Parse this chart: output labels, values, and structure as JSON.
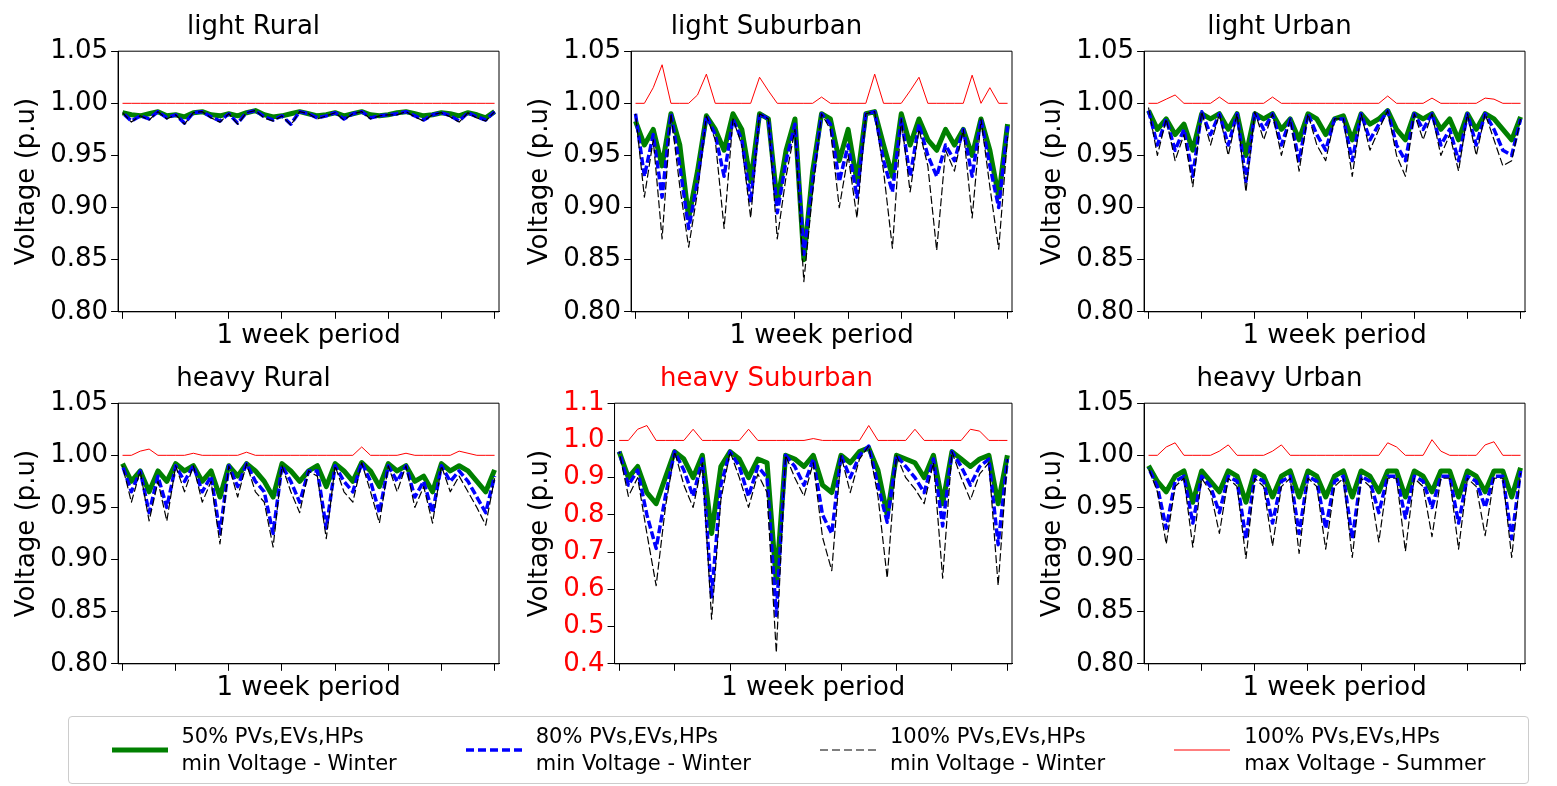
{
  "chart_data": [
    {
      "type": "line",
      "title": "light Rural",
      "xlabel": "1 week period",
      "ylabel": "Voltage (p.u)",
      "categories": [
        null,
        null,
        null,
        null,
        null,
        null,
        null,
        null,
        null,
        null,
        null,
        null,
        null,
        null,
        null,
        null,
        null,
        null,
        null,
        null,
        null,
        null,
        null,
        null,
        null,
        null,
        null,
        null,
        null,
        null,
        null,
        null,
        null,
        null,
        null,
        null,
        null,
        null,
        null,
        null,
        null,
        null,
        null
      ],
      "ylim": [
        0.8,
        1.05
      ],
      "yticks": [
        {
          "value": 0.8,
          "label": "0.80"
        },
        0.85,
        {
          "value": 0.9,
          "label": "0.90"
        },
        0.95,
        {
          "value": 1.0,
          "label": "1.00"
        },
        1.05
      ],
      "tick_labels": "y",
      "legend": "bottom",
      "marker": "none",
      "series": [
        {
          "name": "50% PVs,EVs,HPs\nmin Voltage - Winter",
          "color": "#008000",
          "line_style": "solid",
          "values": [
            0.991,
            0.989,
            0.988,
            0.99,
            0.992,
            0.988,
            0.989,
            0.987,
            0.991,
            0.992,
            0.989,
            0.988,
            0.99,
            0.988,
            0.991,
            0.993,
            0.989,
            0.987,
            0.988,
            0.99,
            0.992,
            0.99,
            0.988,
            0.989,
            0.991,
            0.988,
            0.99,
            0.992,
            0.989,
            0.988,
            0.989,
            0.991,
            0.992,
            0.99,
            0.988,
            0.989,
            0.991,
            0.99,
            0.988,
            0.991,
            0.989,
            0.986,
            0.992
          ]
        },
        {
          "name": "80% PVs,EVs,HPs\nmin Voltage - Winter",
          "color": "#0000ff",
          "line_style": "dashed",
          "values": [
            0.991,
            0.983,
            0.988,
            0.985,
            0.992,
            0.986,
            0.989,
            0.981,
            0.991,
            0.992,
            0.987,
            0.983,
            0.99,
            0.981,
            0.991,
            0.993,
            0.987,
            0.984,
            0.988,
            0.98,
            0.992,
            0.99,
            0.986,
            0.988,
            0.991,
            0.985,
            0.99,
            0.992,
            0.986,
            0.988,
            0.989,
            0.99,
            0.992,
            0.988,
            0.984,
            0.989,
            0.991,
            0.988,
            0.983,
            0.991,
            0.987,
            0.984,
            0.992
          ]
        },
        {
          "name": "100% PVs,EVs,HPs\nmin Voltage - Winter",
          "color": "#000000",
          "line_style": "dashed",
          "values": [
            0.991,
            0.982,
            0.988,
            0.984,
            0.992,
            0.985,
            0.989,
            0.98,
            0.991,
            0.992,
            0.986,
            0.982,
            0.99,
            0.98,
            0.991,
            0.993,
            0.986,
            0.983,
            0.988,
            0.979,
            0.992,
            0.99,
            0.985,
            0.988,
            0.991,
            0.984,
            0.99,
            0.992,
            0.985,
            0.988,
            0.989,
            0.989,
            0.992,
            0.987,
            0.983,
            0.989,
            0.991,
            0.987,
            0.982,
            0.991,
            0.986,
            0.983,
            0.992
          ]
        },
        {
          "name": "100% PVs,EVs,HPs\nmax Voltage - Summer",
          "color": "#ff0000",
          "line_style": "solid",
          "values": [
            1.0,
            1.0,
            1.0,
            1.0,
            1.0,
            1.0,
            1.0,
            1.0,
            1.0,
            1.0,
            1.0,
            1.0,
            1.0,
            1.0,
            1.0,
            1.0,
            1.0,
            1.0,
            1.0,
            1.0,
            1.0,
            1.0,
            1.0,
            1.0,
            1.0,
            1.0,
            1.0,
            1.0,
            1.0,
            1.0,
            1.0,
            1.0,
            1.0,
            1.0,
            1.0,
            1.0,
            1.0,
            1.0,
            1.0,
            1.0,
            1.0,
            1.0,
            1.0
          ]
        }
      ]
    },
    {
      "type": "line",
      "title": "light Suburban",
      "xlabel": "1 week period",
      "ylabel": "Voltage (p.u)",
      "categories": [
        null,
        null,
        null,
        null,
        null,
        null,
        null,
        null,
        null,
        null,
        null,
        null,
        null,
        null,
        null,
        null,
        null,
        null,
        null,
        null,
        null,
        null,
        null,
        null,
        null,
        null,
        null,
        null,
        null,
        null,
        null,
        null,
        null,
        null,
        null,
        null,
        null,
        null,
        null,
        null,
        null,
        null,
        null
      ],
      "ylim": [
        0.8,
        1.05
      ],
      "yticks": [
        {
          "value": 0.8,
          "label": "0.80"
        },
        0.85,
        {
          "value": 0.9,
          "label": "0.90"
        },
        0.95,
        {
          "value": 1.0,
          "label": "1.00"
        },
        1.05
      ],
      "tick_labels": "y",
      "marker": "none",
      "series": [
        {
          "color": "#008000",
          "line_style": "solid",
          "values": [
            0.983,
            0.96,
            0.975,
            0.94,
            0.99,
            0.96,
            0.89,
            0.935,
            0.988,
            0.975,
            0.955,
            0.99,
            0.975,
            0.925,
            0.99,
            0.985,
            0.905,
            0.955,
            0.985,
            0.85,
            0.935,
            0.99,
            0.985,
            0.945,
            0.975,
            0.925,
            0.99,
            0.992,
            0.96,
            0.93,
            0.99,
            0.96,
            0.985,
            0.965,
            0.955,
            0.975,
            0.96,
            0.975,
            0.95,
            0.985,
            0.955,
            0.91,
            0.98
          ]
        },
        {
          "color": "#0000ff",
          "line_style": "dashed",
          "values": [
            0.99,
            0.93,
            0.97,
            0.91,
            0.99,
            0.94,
            0.88,
            0.925,
            0.988,
            0.97,
            0.93,
            0.985,
            0.965,
            0.905,
            0.99,
            0.985,
            0.895,
            0.945,
            0.98,
            0.855,
            0.925,
            0.99,
            0.98,
            0.925,
            0.96,
            0.91,
            0.99,
            0.992,
            0.945,
            0.915,
            0.985,
            0.93,
            0.98,
            0.95,
            0.93,
            0.96,
            0.945,
            0.975,
            0.93,
            0.985,
            0.94,
            0.9,
            0.978
          ]
        },
        {
          "color": "#000000",
          "line_style": "dashed",
          "values": [
            0.99,
            0.91,
            0.965,
            0.87,
            0.99,
            0.92,
            0.862,
            0.915,
            0.988,
            0.965,
            0.88,
            0.985,
            0.96,
            0.89,
            0.99,
            0.985,
            0.87,
            0.93,
            0.975,
            0.829,
            0.915,
            0.99,
            0.975,
            0.9,
            0.95,
            0.89,
            0.99,
            0.992,
            0.935,
            0.861,
            0.985,
            0.915,
            0.975,
            0.94,
            0.859,
            0.955,
            0.935,
            0.975,
            0.89,
            0.985,
            0.92,
            0.86,
            0.968
          ]
        },
        {
          "color": "#ff0000",
          "line_style": "solid",
          "values": [
            1.0,
            1.0,
            1.015,
            1.037,
            1.0,
            1.0,
            1.0,
            1.008,
            1.028,
            1.0,
            1.0,
            1.0,
            1.0,
            1.0,
            1.025,
            1.012,
            1.0,
            1.0,
            1.0,
            1.0,
            1.0,
            1.006,
            1.0,
            1.0,
            1.0,
            1.0,
            1.0,
            1.028,
            1.0,
            1.0,
            1.0,
            1.012,
            1.025,
            1.0,
            1.0,
            1.0,
            1.0,
            1.0,
            1.027,
            1.0,
            1.015,
            1.0,
            1.0
          ]
        }
      ]
    },
    {
      "type": "line",
      "title": "light Urban",
      "xlabel": "1 week period",
      "ylabel": "Voltage (p.u)",
      "categories": [
        null,
        null,
        null,
        null,
        null,
        null,
        null,
        null,
        null,
        null,
        null,
        null,
        null,
        null,
        null,
        null,
        null,
        null,
        null,
        null,
        null,
        null,
        null,
        null,
        null,
        null,
        null,
        null,
        null,
        null,
        null,
        null,
        null,
        null,
        null,
        null,
        null,
        null,
        null,
        null,
        null,
        null,
        null
      ],
      "ylim": [
        0.8,
        1.05
      ],
      "yticks": [
        {
          "value": 0.8,
          "label": "0.80"
        },
        0.85,
        {
          "value": 0.9,
          "label": "0.90"
        },
        0.95,
        {
          "value": 1.0,
          "label": "1.00"
        },
        1.05
      ],
      "tick_labels": "y",
      "marker": "none",
      "series": [
        {
          "color": "#008000",
          "line_style": "solid",
          "values": [
            0.993,
            0.975,
            0.985,
            0.97,
            0.98,
            0.955,
            0.99,
            0.985,
            0.99,
            0.975,
            0.99,
            0.95,
            0.99,
            0.985,
            0.99,
            0.975,
            0.985,
            0.965,
            0.99,
            0.985,
            0.97,
            0.985,
            0.988,
            0.965,
            0.99,
            0.98,
            0.985,
            0.993,
            0.975,
            0.965,
            0.99,
            0.985,
            0.99,
            0.975,
            0.985,
            0.965,
            0.99,
            0.975,
            0.99,
            0.985,
            0.975,
            0.965,
            0.987
          ]
        },
        {
          "color": "#0000ff",
          "line_style": "dashed",
          "values": [
            0.993,
            0.96,
            0.985,
            0.955,
            0.975,
            0.93,
            0.992,
            0.97,
            0.99,
            0.96,
            0.99,
            0.925,
            0.992,
            0.975,
            0.99,
            0.96,
            0.985,
            0.945,
            0.99,
            0.97,
            0.955,
            0.985,
            0.985,
            0.945,
            0.99,
            0.965,
            0.98,
            0.993,
            0.96,
            0.945,
            0.99,
            0.975,
            0.99,
            0.96,
            0.975,
            0.945,
            0.99,
            0.96,
            0.99,
            0.975,
            0.955,
            0.95,
            0.985
          ]
        },
        {
          "color": "#000000",
          "line_style": "dashed",
          "values": [
            0.996,
            0.95,
            0.985,
            0.945,
            0.97,
            0.92,
            0.992,
            0.96,
            0.99,
            0.95,
            0.99,
            0.915,
            0.992,
            0.965,
            0.99,
            0.95,
            0.985,
            0.935,
            0.99,
            0.96,
            0.945,
            0.985,
            0.985,
            0.93,
            0.99,
            0.955,
            0.975,
            0.993,
            0.95,
            0.93,
            0.99,
            0.965,
            0.99,
            0.95,
            0.97,
            0.935,
            0.99,
            0.95,
            0.99,
            0.965,
            0.94,
            0.945,
            0.985
          ]
        },
        {
          "color": "#ff0000",
          "line_style": "solid",
          "values": [
            1.0,
            1.0,
            1.004,
            1.008,
            1.0,
            1.0,
            1.0,
            1.0,
            1.006,
            1.0,
            1.0,
            1.0,
            1.0,
            1.0,
            1.006,
            1.0,
            1.0,
            1.0,
            1.0,
            1.0,
            1.0,
            1.0,
            1.0,
            1.0,
            1.0,
            1.0,
            1.0,
            1.007,
            1.0,
            1.0,
            1.0,
            1.0,
            1.005,
            1.0,
            1.0,
            1.0,
            1.0,
            1.0,
            1.005,
            1.004,
            1.0,
            1.0,
            1.0
          ]
        }
      ]
    },
    {
      "type": "line",
      "title": "heavy Rural",
      "xlabel": "1 week period",
      "ylabel": "Voltage (p.u)",
      "categories": [
        null,
        null,
        null,
        null,
        null,
        null,
        null,
        null,
        null,
        null,
        null,
        null,
        null,
        null,
        null,
        null,
        null,
        null,
        null,
        null,
        null,
        null,
        null,
        null,
        null,
        null,
        null,
        null,
        null,
        null,
        null,
        null,
        null,
        null,
        null,
        null,
        null,
        null,
        null,
        null,
        null,
        null,
        null
      ],
      "ylim": [
        0.8,
        1.05
      ],
      "yticks": [
        {
          "value": 0.8,
          "label": "0.80"
        },
        0.85,
        {
          "value": 0.9,
          "label": "0.90"
        },
        0.95,
        {
          "value": 1.0,
          "label": "1.00"
        },
        1.05
      ],
      "tick_labels": "y",
      "marker": "none",
      "series": [
        {
          "color": "#008000",
          "line_style": "solid",
          "values": [
            0.992,
            0.975,
            0.985,
            0.965,
            0.985,
            0.975,
            0.992,
            0.985,
            0.99,
            0.975,
            0.985,
            0.96,
            0.99,
            0.98,
            0.992,
            0.985,
            0.975,
            0.96,
            0.992,
            0.985,
            0.975,
            0.985,
            0.99,
            0.97,
            0.992,
            0.985,
            0.975,
            0.993,
            0.985,
            0.97,
            0.992,
            0.985,
            0.99,
            0.975,
            0.98,
            0.965,
            0.992,
            0.985,
            0.99,
            0.985,
            0.975,
            0.965,
            0.986
          ]
        },
        {
          "color": "#0000ff",
          "line_style": "dashed",
          "values": [
            0.99,
            0.965,
            0.985,
            0.945,
            0.98,
            0.95,
            0.99,
            0.975,
            0.99,
            0.965,
            0.98,
            0.925,
            0.99,
            0.97,
            0.992,
            0.975,
            0.965,
            0.925,
            0.99,
            0.975,
            0.955,
            0.985,
            0.985,
            0.93,
            0.99,
            0.975,
            0.965,
            0.993,
            0.975,
            0.945,
            0.99,
            0.975,
            0.99,
            0.96,
            0.975,
            0.945,
            0.99,
            0.975,
            0.985,
            0.975,
            0.96,
            0.945,
            0.98
          ]
        },
        {
          "color": "#000000",
          "line_style": "dashed",
          "values": [
            0.99,
            0.955,
            0.985,
            0.937,
            0.975,
            0.937,
            0.99,
            0.965,
            0.99,
            0.955,
            0.975,
            0.915,
            0.99,
            0.96,
            0.992,
            0.965,
            0.955,
            0.912,
            0.99,
            0.965,
            0.945,
            0.985,
            0.98,
            0.92,
            0.99,
            0.965,
            0.955,
            0.993,
            0.965,
            0.935,
            0.99,
            0.965,
            0.99,
            0.95,
            0.97,
            0.935,
            0.99,
            0.965,
            0.98,
            0.965,
            0.95,
            0.933,
            0.978
          ]
        },
        {
          "color": "#ff0000",
          "line_style": "solid",
          "values": [
            1.0,
            1.0,
            1.004,
            1.006,
            1.0,
            1.0,
            1.0,
            1.0,
            1.002,
            1.0,
            1.0,
            1.0,
            1.0,
            1.0,
            1.003,
            1.0,
            1.0,
            1.0,
            1.0,
            1.0,
            1.0,
            1.0,
            1.0,
            1.0,
            1.0,
            1.0,
            1.0,
            1.008,
            1.0,
            1.0,
            1.0,
            1.0,
            1.002,
            1.0,
            1.0,
            1.0,
            1.0,
            1.0,
            1.004,
            1.002,
            1.0,
            1.0,
            1.0
          ]
        }
      ]
    },
    {
      "type": "line",
      "title": "heavy Suburban",
      "xlabel": "1 week period",
      "ylabel": "Voltage (p.u)",
      "categories": [
        null,
        null,
        null,
        null,
        null,
        null,
        null,
        null,
        null,
        null,
        null,
        null,
        null,
        null,
        null,
        null,
        null,
        null,
        null,
        null,
        null,
        null,
        null,
        null,
        null,
        null,
        null,
        null,
        null,
        null,
        null,
        null,
        null,
        null,
        null,
        null,
        null,
        null,
        null,
        null,
        null,
        null,
        null
      ],
      "ylim": [
        0.4,
        1.1
      ],
      "yticks": [
        0.4,
        0.5,
        0.6,
        0.7,
        0.8,
        0.9,
        {
          "value": 1.0,
          "label": "1.0"
        },
        1.1
      ],
      "tick_labels": "y",
      "marker": "none",
      "series": [
        {
          "color": "#008000",
          "line_style": "solid",
          "values": [
            0.97,
            0.9,
            0.93,
            0.86,
            0.83,
            0.9,
            0.97,
            0.95,
            0.9,
            0.96,
            0.75,
            0.93,
            0.97,
            0.95,
            0.9,
            0.95,
            0.94,
            0.62,
            0.96,
            0.95,
            0.93,
            0.96,
            0.88,
            0.86,
            0.96,
            0.94,
            0.97,
            0.98,
            0.92,
            0.8,
            0.96,
            0.95,
            0.94,
            0.9,
            0.96,
            0.83,
            0.97,
            0.95,
            0.93,
            0.95,
            0.96,
            0.83,
            0.96
          ]
        },
        {
          "color": "#0000ff",
          "line_style": "dashed",
          "values": [
            0.97,
            0.88,
            0.92,
            0.8,
            0.71,
            0.85,
            0.97,
            0.92,
            0.85,
            0.95,
            0.58,
            0.88,
            0.97,
            0.93,
            0.85,
            0.93,
            0.9,
            0.53,
            0.96,
            0.93,
            0.88,
            0.95,
            0.8,
            0.75,
            0.96,
            0.9,
            0.96,
            0.985,
            0.88,
            0.78,
            0.96,
            0.93,
            0.9,
            0.86,
            0.95,
            0.77,
            0.97,
            0.93,
            0.88,
            0.93,
            0.95,
            0.72,
            0.95
          ]
        },
        {
          "color": "#000000",
          "line_style": "dashed",
          "values": [
            0.97,
            0.85,
            0.9,
            0.75,
            0.61,
            0.82,
            0.97,
            0.88,
            0.82,
            0.94,
            0.52,
            0.84,
            0.97,
            0.9,
            0.82,
            0.91,
            0.86,
            0.43,
            0.96,
            0.9,
            0.85,
            0.94,
            0.74,
            0.65,
            0.96,
            0.86,
            0.95,
            0.985,
            0.85,
            0.63,
            0.96,
            0.9,
            0.87,
            0.83,
            0.94,
            0.63,
            0.97,
            0.9,
            0.84,
            0.91,
            0.94,
            0.61,
            0.95
          ]
        },
        {
          "color": "#ff0000",
          "line_style": "solid",
          "values": [
            1.0,
            1.0,
            1.03,
            1.04,
            1.0,
            1.0,
            1.0,
            1.0,
            1.03,
            1.0,
            1.0,
            1.0,
            1.0,
            1.0,
            1.03,
            1.0,
            1.0,
            1.0,
            1.0,
            1.0,
            1.0,
            1.005,
            1.0,
            1.0,
            1.0,
            1.0,
            1.0,
            1.04,
            1.0,
            1.0,
            1.0,
            1.0,
            1.03,
            1.0,
            1.0,
            1.0,
            1.0,
            1.0,
            1.03,
            1.025,
            1.0,
            1.0,
            1.0
          ]
        }
      ]
    },
    {
      "type": "line",
      "title": "heavy Urban",
      "xlabel": "1 week period",
      "ylabel": "Voltage (p.u)",
      "categories": [
        null,
        null,
        null,
        null,
        null,
        null,
        null,
        null,
        null,
        null,
        null,
        null,
        null,
        null,
        null,
        null,
        null,
        null,
        null,
        null,
        null,
        null,
        null,
        null,
        null,
        null,
        null,
        null,
        null,
        null,
        null,
        null,
        null,
        null,
        null,
        null,
        null,
        null,
        null,
        null,
        null,
        null,
        null
      ],
      "ylim": [
        0.8,
        1.05
      ],
      "yticks": [
        {
          "value": 0.8,
          "label": "0.80"
        },
        0.85,
        {
          "value": 0.9,
          "label": "0.90"
        },
        0.95,
        {
          "value": 1.0,
          "label": "1.00"
        },
        1.05
      ],
      "tick_labels": "y",
      "marker": "none",
      "series": [
        {
          "color": "#008000",
          "line_style": "solid",
          "values": [
            0.99,
            0.975,
            0.965,
            0.98,
            0.985,
            0.955,
            0.985,
            0.975,
            0.965,
            0.985,
            0.98,
            0.955,
            0.985,
            0.98,
            0.96,
            0.98,
            0.985,
            0.96,
            0.985,
            0.98,
            0.96,
            0.98,
            0.985,
            0.96,
            0.985,
            0.98,
            0.965,
            0.985,
            0.985,
            0.96,
            0.985,
            0.98,
            0.965,
            0.985,
            0.985,
            0.96,
            0.985,
            0.98,
            0.965,
            0.985,
            0.985,
            0.96,
            0.988
          ]
        },
        {
          "color": "#0000ff",
          "line_style": "dashed",
          "values": [
            0.988,
            0.97,
            0.93,
            0.975,
            0.98,
            0.935,
            0.98,
            0.97,
            0.945,
            0.98,
            0.975,
            0.92,
            0.98,
            0.975,
            0.935,
            0.975,
            0.98,
            0.925,
            0.98,
            0.975,
            0.93,
            0.975,
            0.98,
            0.92,
            0.98,
            0.975,
            0.945,
            0.98,
            0.98,
            0.94,
            0.98,
            0.975,
            0.95,
            0.98,
            0.98,
            0.935,
            0.98,
            0.975,
            0.95,
            0.98,
            0.98,
            0.92,
            0.985
          ]
        },
        {
          "color": "#000000",
          "line_style": "dashed",
          "values": [
            0.988,
            0.965,
            0.915,
            0.97,
            0.978,
            0.912,
            0.978,
            0.965,
            0.925,
            0.978,
            0.97,
            0.901,
            0.978,
            0.97,
            0.913,
            0.97,
            0.978,
            0.906,
            0.978,
            0.97,
            0.91,
            0.97,
            0.978,
            0.902,
            0.978,
            0.97,
            0.917,
            0.978,
            0.978,
            0.908,
            0.978,
            0.97,
            0.922,
            0.978,
            0.978,
            0.91,
            0.978,
            0.97,
            0.923,
            0.978,
            0.978,
            0.902,
            0.983
          ]
        },
        {
          "color": "#ff0000",
          "line_style": "solid",
          "values": [
            1.0,
            1.0,
            1.008,
            1.012,
            1.0,
            1.0,
            1.0,
            1.0,
            1.004,
            1.01,
            1.0,
            1.0,
            1.0,
            1.0,
            1.004,
            1.01,
            1.0,
            1.0,
            1.0,
            1.0,
            1.0,
            1.0,
            1.0,
            1.0,
            1.0,
            1.0,
            1.0,
            1.012,
            1.008,
            1.0,
            1.0,
            1.0,
            1.015,
            1.004,
            1.0,
            1.0,
            1.0,
            1.0,
            1.01,
            1.013,
            1.0,
            1.0,
            1.0
          ]
        }
      ]
    }
  ]
}
